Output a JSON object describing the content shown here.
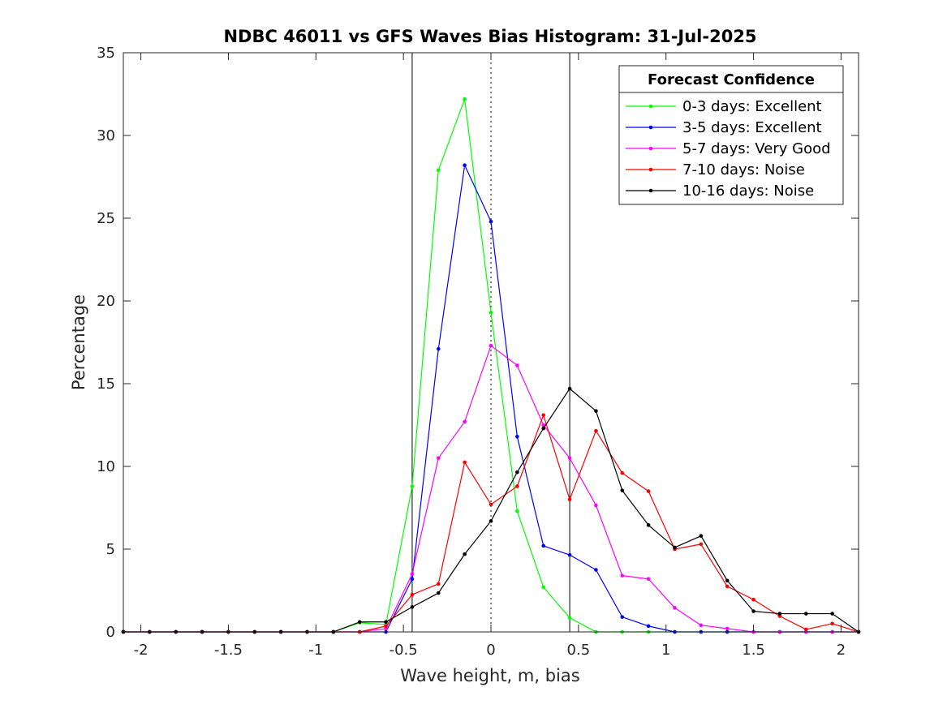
{
  "chart_data": {
    "type": "line",
    "title": "NDBC 46011 vs GFS Waves Bias Histogram: 31-Jul-2025",
    "xlabel": "Wave height, m, bias",
    "ylabel": "Percentage",
    "xlim": [
      -2.1,
      2.1
    ],
    "ylim": [
      0,
      35
    ],
    "xticks": [
      -2,
      -1.5,
      -1,
      -0.5,
      0,
      0.5,
      1,
      1.5,
      2
    ],
    "xtick_labels": [
      "-2",
      "-1.5",
      "-1",
      "-0.5",
      "0",
      "0.5",
      "1",
      "1.5",
      "2"
    ],
    "yticks": [
      0,
      5,
      10,
      15,
      20,
      25,
      30,
      35
    ],
    "ytick_labels": [
      "0",
      "5",
      "10",
      "15",
      "20",
      "25",
      "30",
      "35"
    ],
    "grid": false,
    "reference_lines": [
      {
        "x": -0.45,
        "style": "solid",
        "color": "#000000"
      },
      {
        "x": 0,
        "style": "dotted",
        "color": "#000000"
      },
      {
        "x": 0.45,
        "style": "solid",
        "color": "#000000"
      }
    ],
    "legend": {
      "title": "Forecast Confidence",
      "position": "top-right"
    },
    "x": [
      -2.1,
      -1.95,
      -1.8,
      -1.65,
      -1.5,
      -1.35,
      -1.2,
      -1.05,
      -0.9,
      -0.75,
      -0.6,
      -0.45,
      -0.3,
      -0.15,
      0,
      0.15,
      0.3,
      0.45,
      0.6,
      0.75,
      0.9,
      1.05,
      1.2,
      1.35,
      1.5,
      1.65,
      1.8,
      1.95,
      2.1
    ],
    "series": [
      {
        "name": "0-3 days: Excellent",
        "color": "#00ff00",
        "values": [
          0,
          0,
          0,
          0,
          0,
          0,
          0,
          0,
          0,
          0.55,
          0.45,
          8.8,
          27.9,
          32.2,
          19.3,
          7.3,
          2.7,
          0.85,
          0,
          0,
          0,
          0,
          0,
          0,
          0,
          0,
          0,
          0,
          0
        ]
      },
      {
        "name": "3-5 days: Excellent",
        "color": "#0000ff",
        "values": [
          0,
          0,
          0,
          0,
          0,
          0,
          0,
          0,
          0,
          0,
          0,
          3.2,
          17.1,
          28.2,
          24.8,
          11.8,
          5.2,
          4.65,
          3.75,
          0.9,
          0.35,
          0,
          0,
          0,
          0,
          0,
          0,
          0,
          0
        ]
      },
      {
        "name": "5-7 days: Very Good",
        "color": "#ff00ff",
        "values": [
          0,
          0,
          0,
          0,
          0,
          0,
          0,
          0,
          0,
          0,
          0.2,
          3.5,
          10.5,
          12.7,
          17.3,
          16.1,
          12.5,
          10.5,
          7.65,
          3.4,
          3.2,
          1.45,
          0.4,
          0.2,
          0,
          0,
          0,
          0,
          0
        ]
      },
      {
        "name": "7-10 days: Noise",
        "color": "#ff0000",
        "values": [
          0,
          0,
          0,
          0,
          0,
          0,
          0,
          0,
          0,
          0,
          0.35,
          2.25,
          2.9,
          10.25,
          7.7,
          8.8,
          13.1,
          8.0,
          12.15,
          9.6,
          8.5,
          5.0,
          5.3,
          2.75,
          1.95,
          0.95,
          0.15,
          0.5,
          0
        ]
      },
      {
        "name": "10-16 days: Noise",
        "color": "#000000",
        "values": [
          0,
          0,
          0,
          0,
          0,
          0,
          0,
          0,
          0,
          0.6,
          0.6,
          1.5,
          2.35,
          4.7,
          6.7,
          9.65,
          12.3,
          14.7,
          13.35,
          8.55,
          6.45,
          5.1,
          5.8,
          3.1,
          1.25,
          1.1,
          1.1,
          1.1,
          0
        ]
      }
    ]
  }
}
